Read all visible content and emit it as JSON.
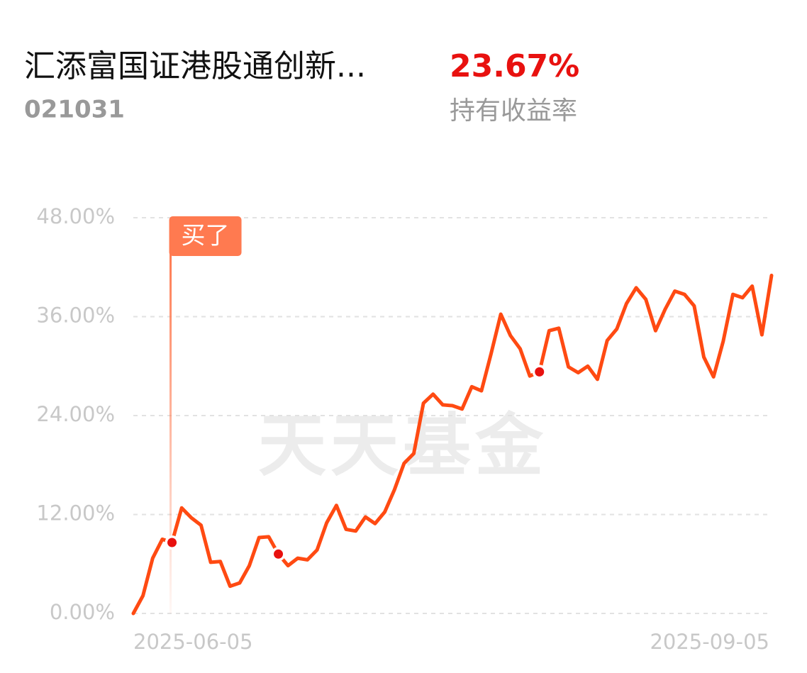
{
  "header": {
    "title": "汇添富国证港股通创新...",
    "code": "021031",
    "return_value": "23.67%",
    "return_label": "持有收益率"
  },
  "chart_data": {
    "type": "line",
    "watermark": "天天基金",
    "categories": [
      "2025-06-05",
      null,
      null,
      null,
      null,
      null,
      null,
      null,
      null,
      null,
      null,
      null,
      null,
      null,
      null,
      null,
      null,
      null,
      null,
      null,
      null,
      null,
      null,
      null,
      null,
      null,
      null,
      null,
      null,
      null,
      null,
      null,
      null,
      null,
      null,
      null,
      null,
      null,
      null,
      null,
      null,
      null,
      null,
      null,
      null,
      null,
      null,
      null,
      null,
      null,
      null,
      null,
      null,
      null,
      null,
      null,
      null,
      null,
      null,
      null,
      null,
      null,
      null,
      null,
      null,
      null,
      "2025-09-05"
    ],
    "series": [
      {
        "name": "持有收益率",
        "color": "#ff4a12",
        "values": [
          0,
          2.15,
          6.7,
          9.0,
          8.6,
          12.8,
          11.6,
          10.7,
          6.2,
          6.3,
          3.3,
          3.7,
          5.8,
          9.2,
          9.3,
          7.2,
          5.8,
          6.7,
          6.5,
          7.7,
          11.0,
          13.1,
          10.2,
          10.0,
          11.7,
          10.9,
          12.3,
          15.0,
          18.2,
          19.4,
          25.5,
          26.6,
          25.3,
          25.2,
          24.8,
          27.5,
          27.0,
          31.5,
          36.3,
          33.7,
          32.1,
          28.8,
          29.3,
          34.3,
          34.6,
          29.9,
          29.2,
          30.0,
          28.4,
          33.1,
          34.5,
          37.6,
          39.5,
          38.1,
          34.3,
          36.9,
          39.1,
          38.7,
          37.3,
          31.1,
          28.7,
          33.0,
          38.7,
          38.3,
          39.7,
          33.8,
          41.0
        ]
      }
    ],
    "markers": [
      4,
      15,
      42
    ],
    "annotations": [
      {
        "index": 4,
        "label": "买了"
      }
    ],
    "ylim": [
      0,
      48
    ],
    "yticks": [
      {
        "value": 0,
        "label": "0.00%"
      },
      {
        "value": 12,
        "label": "12.00%"
      },
      {
        "value": 24,
        "label": "24.00%"
      },
      {
        "value": 36,
        "label": "36.00%"
      },
      {
        "value": 48,
        "label": "48.00%"
      }
    ],
    "grid": true
  }
}
